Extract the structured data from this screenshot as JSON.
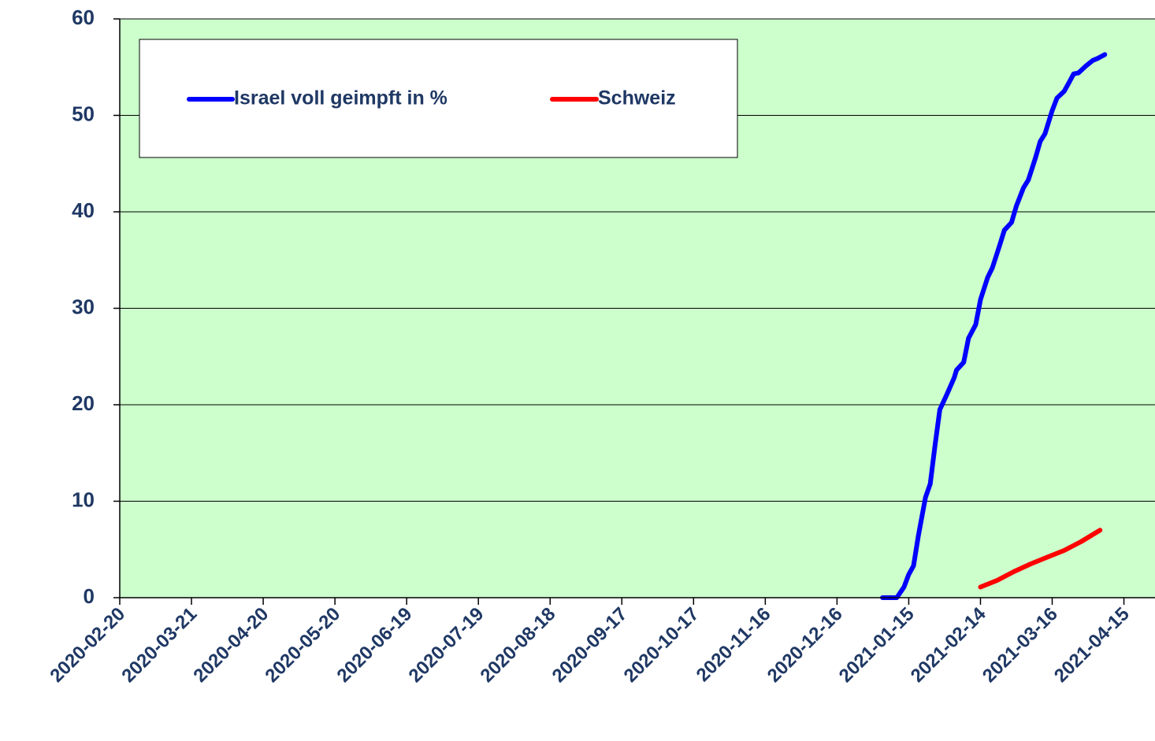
{
  "chart_data": {
    "type": "line",
    "xlim": [
      "2020-02-20",
      "2021-04-28"
    ],
    "xticks": [
      "2020-02-20",
      "2020-03-21",
      "2020-04-20",
      "2020-05-20",
      "2020-06-19",
      "2020-07-19",
      "2020-08-18",
      "2020-09-17",
      "2020-10-17",
      "2020-11-16",
      "2020-12-16",
      "2021-01-15",
      "2021-02-14",
      "2021-03-16",
      "2021-04-15"
    ],
    "ylim": [
      0,
      60
    ],
    "yticks": [
      0,
      10,
      20,
      30,
      40,
      50,
      60
    ],
    "grid": true,
    "legend": "top-left",
    "series": [
      {
        "name": "Israel voll geimpft in %",
        "color": "#0000ff",
        "x": [
          "2021-01-04",
          "2021-01-10",
          "2021-01-13",
          "2021-01-15",
          "2021-01-17",
          "2021-01-19",
          "2021-01-22",
          "2021-01-24",
          "2021-01-26",
          "2021-01-28",
          "2021-01-31",
          "2021-02-03",
          "2021-02-04",
          "2021-02-07",
          "2021-02-09",
          "2021-02-12",
          "2021-02-14",
          "2021-02-17",
          "2021-02-19",
          "2021-02-22",
          "2021-02-24",
          "2021-02-27",
          "2021-03-01",
          "2021-03-04",
          "2021-03-06",
          "2021-03-09",
          "2021-03-11",
          "2021-03-13",
          "2021-03-16",
          "2021-03-18",
          "2021-03-21",
          "2021-03-23",
          "2021-03-25",
          "2021-03-27",
          "2021-03-30",
          "2021-04-02",
          "2021-04-04",
          "2021-04-07"
        ],
        "values": [
          0,
          0,
          1.1,
          2.4,
          3.3,
          6.4,
          10.4,
          11.8,
          15.8,
          19.5,
          21.1,
          22.8,
          23.6,
          24.4,
          26.9,
          28.3,
          30.9,
          33.2,
          34.2,
          36.5,
          38.1,
          38.9,
          40.6,
          42.5,
          43.3,
          45.6,
          47.3,
          48.1,
          50.5,
          51.8,
          52.5,
          53.4,
          54.3,
          54.4,
          55.1,
          55.7,
          55.9,
          56.3
        ]
      },
      {
        "name": "Schweiz",
        "color": "#ff0000",
        "x": [
          "2021-02-14",
          "2021-02-21",
          "2021-02-28",
          "2021-03-07",
          "2021-03-14",
          "2021-03-21",
          "2021-03-28",
          "2021-04-05"
        ],
        "values": [
          1.1,
          1.8,
          2.7,
          3.5,
          4.2,
          4.9,
          5.8,
          7.0
        ]
      }
    ]
  }
}
